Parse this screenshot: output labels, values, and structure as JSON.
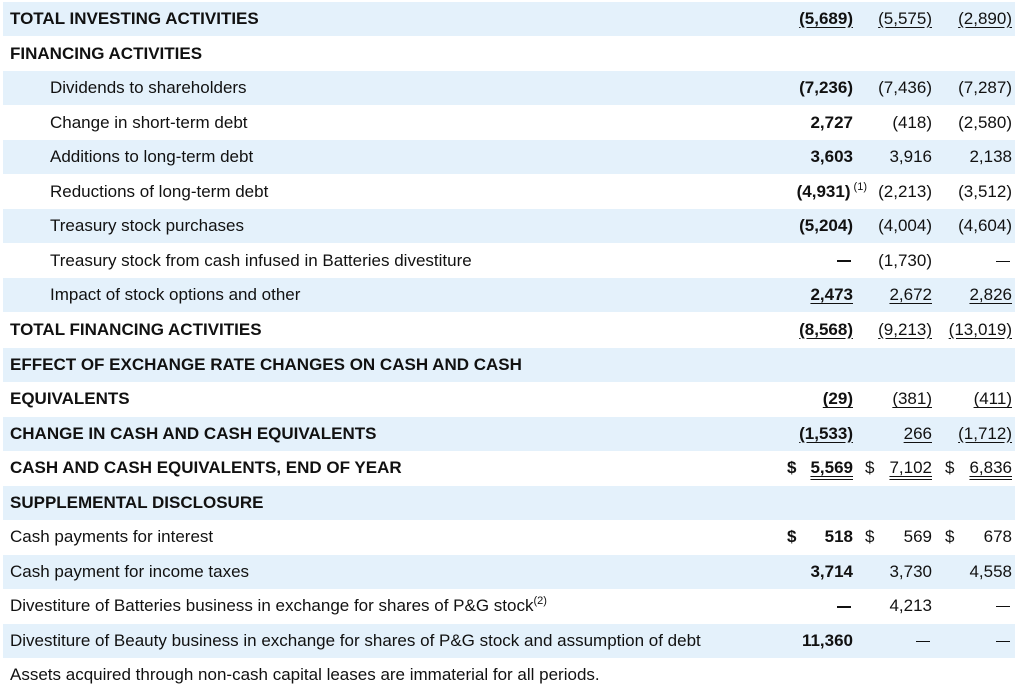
{
  "rows": [
    {
      "label": "TOTAL INVESTING ACTIVITIES",
      "indent": 0,
      "bold": true,
      "shade": true,
      "v1": "(5,689)",
      "v2": "(5,575)",
      "v3": "(2,890)",
      "underline": "single"
    },
    {
      "label": "FINANCING ACTIVITIES",
      "indent": 0,
      "bold": true,
      "shade": false
    },
    {
      "label": "Dividends to shareholders",
      "indent": 1,
      "shade": true,
      "v1": "(7,236)",
      "v2": "(7,436)",
      "v3": "(7,287)"
    },
    {
      "label": "Change in short-term debt",
      "indent": 1,
      "shade": false,
      "v1": "2,727",
      "v2": "(418)",
      "v3": "(2,580)"
    },
    {
      "label": "Additions to long-term debt",
      "indent": 1,
      "shade": true,
      "v1": "3,603",
      "v2": "3,916",
      "v3": "2,138"
    },
    {
      "label": "Reductions of long-term debt",
      "indent": 1,
      "shade": false,
      "v1": "(4,931)",
      "v1_note": "(1)",
      "v2": "(2,213)",
      "v3": "(3,512)"
    },
    {
      "label": "Treasury stock purchases",
      "indent": 1,
      "shade": true,
      "v1": "(5,204)",
      "v2": "(4,004)",
      "v3": "(4,604)"
    },
    {
      "label": "Treasury stock from cash infused in Batteries divestiture",
      "indent": 1,
      "shade": false,
      "v1": "—",
      "v2": "(1,730)",
      "v3": "—"
    },
    {
      "label": "Impact of stock options and other",
      "indent": 1,
      "shade": true,
      "v1": "2,473",
      "v2": "2,672",
      "v3": "2,826",
      "underline": "single"
    },
    {
      "label": "TOTAL FINANCING ACTIVITIES",
      "indent": 0,
      "bold": true,
      "shade": false,
      "v1": "(8,568)",
      "v2": "(9,213)",
      "v3": "(13,019)",
      "underline": "single"
    },
    {
      "label": "EFFECT OF EXCHANGE RATE CHANGES ON CASH AND CASH",
      "indent": 0,
      "bold": true,
      "shade": true
    },
    {
      "label": "EQUIVALENTS",
      "indent": 0,
      "bold": true,
      "shade": false,
      "v1": "(29)",
      "v2": "(381)",
      "v3": "(411)",
      "underline": "single"
    },
    {
      "label": "CHANGE IN CASH AND CASH EQUIVALENTS",
      "indent": 0,
      "bold": true,
      "shade": true,
      "v1": "(1,533)",
      "v2": "266",
      "v3": "(1,712)",
      "underline": "single"
    },
    {
      "label": "CASH AND CASH EQUIVALENTS, END OF YEAR",
      "indent": 0,
      "bold": true,
      "shade": false,
      "v1": "5,569",
      "v2": "7,102",
      "v3": "6,836",
      "dollar": "$",
      "underline": "double"
    },
    {
      "label": "SUPPLEMENTAL DISCLOSURE",
      "indent": 0,
      "bold": true,
      "shade": true
    },
    {
      "label": "Cash payments for interest",
      "indent": 0,
      "shade": false,
      "v1": "518",
      "v2": "569",
      "v3": "678",
      "dollar": "$"
    },
    {
      "label": "Cash payment for income taxes",
      "indent": 0,
      "shade": true,
      "v1": "3,714",
      "v2": "3,730",
      "v3": "4,558"
    },
    {
      "label": "Divestiture of Batteries business in exchange for shares of P&G stock",
      "label_note": "(2)",
      "indent": 0,
      "shade": false,
      "v1": "—",
      "v2": "4,213",
      "v3": "—"
    },
    {
      "label": "Divestiture of Beauty business in exchange for shares of P&G stock and assumption of debt",
      "indent": 0,
      "shade": true,
      "v1": "11,360",
      "v2": "—",
      "v3": "—"
    },
    {
      "label": "Assets acquired through non-cash capital leases are immaterial for all periods.",
      "indent": 0,
      "shade": false
    }
  ]
}
